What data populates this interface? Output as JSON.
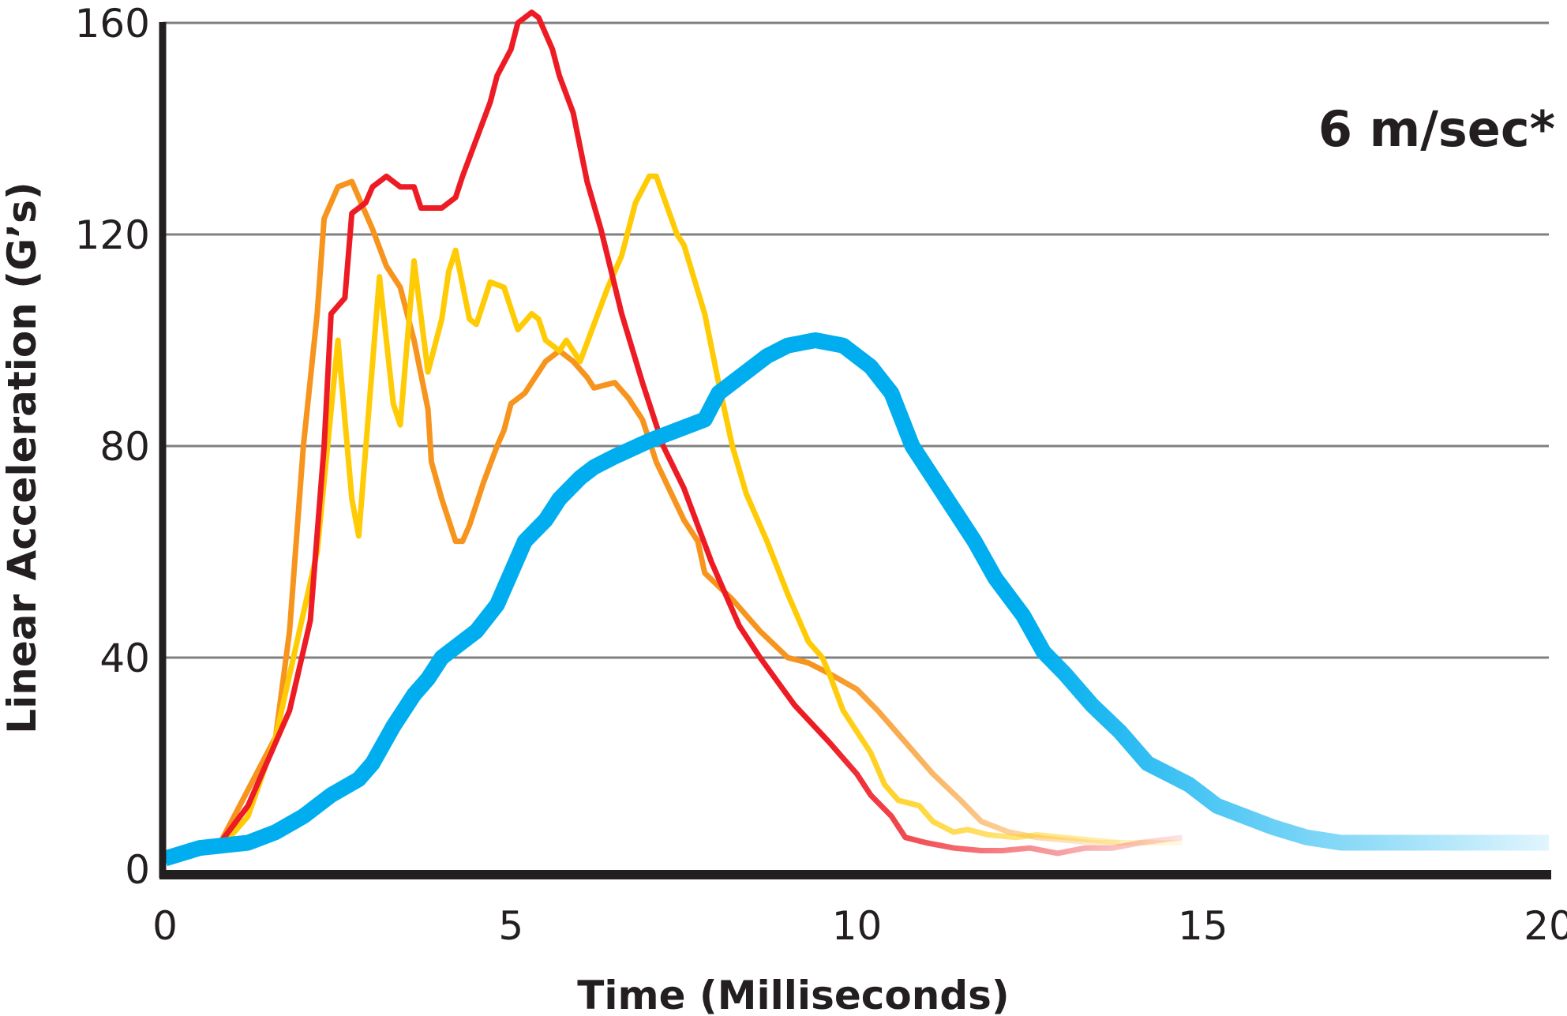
{
  "chart_data": {
    "type": "line",
    "title": "",
    "annotation": "6 m/sec*",
    "xlabel": "Time (Milliseconds)",
    "ylabel": "Linear Acceleration (G’s)",
    "xlim": [
      0,
      20
    ],
    "ylim": [
      0,
      160
    ],
    "xticks": [
      0,
      5,
      10,
      15,
      20
    ],
    "yticks": [
      0,
      40,
      80,
      120,
      160
    ],
    "grid": "horizontal",
    "series": [
      {
        "color": "#f7941d",
        "width": "thin",
        "fade_from": 9.5,
        "x": [
          0.8,
          1.6,
          1.8,
          2.0,
          2.2,
          2.3,
          2.5,
          2.7,
          2.8,
          3.0,
          3.2,
          3.4,
          3.6,
          3.8,
          3.85,
          4.0,
          4.1,
          4.2,
          4.3,
          4.4,
          4.6,
          4.8,
          4.9,
          5.0,
          5.2,
          5.3,
          5.5,
          5.7,
          5.9,
          6.1,
          6.2,
          6.5,
          6.7,
          6.9,
          7.1,
          7.5,
          7.7,
          7.8,
          8.2,
          8.6,
          9.0,
          9.3,
          9.6,
          10.0,
          10.3,
          10.7,
          11.1,
          11.5,
          11.8,
          12.2,
          12.6,
          13.0,
          13.4,
          13.8
        ],
        "y": [
          5,
          25,
          45,
          80,
          105,
          123,
          129,
          130,
          127,
          121,
          114,
          110,
          100,
          87,
          77,
          70,
          66,
          62,
          62,
          65,
          73,
          80,
          83,
          88,
          90,
          92,
          96,
          98,
          96,
          93,
          91,
          92,
          89,
          85,
          77,
          66,
          62,
          56,
          51,
          45,
          40,
          39,
          37,
          34,
          30,
          24,
          18,
          13,
          9,
          7,
          6,
          5.5,
          5,
          5
        ]
      },
      {
        "color": "#ffcb05",
        "width": "thin",
        "fade_from": 9.5,
        "x": [
          0.8,
          1.2,
          1.6,
          2.2,
          2.5,
          2.7,
          2.8,
          3.1,
          3.3,
          3.4,
          3.6,
          3.8,
          4.0,
          4.1,
          4.2,
          4.4,
          4.5,
          4.7,
          4.9,
          5.1,
          5.3,
          5.4,
          5.5,
          5.7,
          5.8,
          6.0,
          6.2,
          6.4,
          6.6,
          6.8,
          7.0,
          7.1,
          7.4,
          7.5,
          7.8,
          8.0,
          8.2,
          8.4,
          8.5,
          8.7,
          9.0,
          9.3,
          9.5,
          9.6,
          9.8,
          10.0,
          10.2,
          10.4,
          10.6,
          10.9,
          11.1,
          11.4,
          11.6,
          11.9,
          12.3,
          12.6,
          13.0,
          13.4,
          13.8,
          14.2,
          14.7
        ],
        "y": [
          4,
          10,
          25,
          60,
          100,
          70,
          63,
          112,
          88,
          84,
          115,
          94,
          104,
          113,
          117,
          104,
          103,
          111,
          110,
          102,
          105,
          104,
          100,
          98,
          100,
          96,
          103,
          110,
          116,
          126,
          131,
          131,
          120,
          118,
          105,
          92,
          80,
          71,
          68,
          62,
          52,
          43,
          40,
          37,
          30,
          26,
          22,
          16,
          13,
          12,
          9,
          7,
          7.5,
          6.5,
          6,
          6.5,
          6,
          5.5,
          5,
          5,
          5
        ]
      },
      {
        "color": "#ed1c24",
        "width": "thin",
        "fade_from": 9.5,
        "x": [
          0.8,
          1.2,
          1.8,
          2.1,
          2.3,
          2.4,
          2.6,
          2.7,
          2.9,
          3.0,
          3.2,
          3.4,
          3.6,
          3.7,
          4.0,
          4.2,
          4.3,
          4.7,
          4.8,
          5.0,
          5.1,
          5.3,
          5.4,
          5.6,
          5.7,
          5.9,
          6.1,
          6.3,
          6.6,
          6.9,
          7.2,
          7.5,
          7.9,
          8.1,
          8.3,
          8.6,
          9.1,
          9.6,
          10.0,
          10.2,
          10.5,
          10.7,
          11.0,
          11.4,
          11.8,
          12.1,
          12.5,
          12.9,
          13.3,
          13.7,
          14.1,
          14.7
        ],
        "y": [
          5,
          12,
          30,
          47,
          80,
          105,
          108,
          124,
          126,
          129,
          131,
          129,
          129,
          125,
          125,
          127,
          131,
          145,
          150,
          155,
          160,
          162,
          161,
          155,
          150,
          143,
          130,
          121,
          105,
          92,
          80,
          72,
          58,
          52,
          46,
          40,
          31,
          24,
          18,
          14,
          10,
          6,
          5,
          4,
          3.5,
          3.5,
          4,
          3,
          4,
          4,
          5,
          6
        ]
      },
      {
        "color": "#00aeef",
        "width": "thick",
        "fade_from": 12.5,
        "x": [
          0,
          0.5,
          1.2,
          1.6,
          2.0,
          2.4,
          2.8,
          3.0,
          3.3,
          3.6,
          3.8,
          4.0,
          4.2,
          4.5,
          4.8,
          5.0,
          5.2,
          5.5,
          5.7,
          6.0,
          6.2,
          6.5,
          7.0,
          7.4,
          7.8,
          8.0,
          8.4,
          8.7,
          9.0,
          9.4,
          9.8,
          10.2,
          10.5,
          10.8,
          11.1,
          11.4,
          11.7,
          12.0,
          12.4,
          12.7,
          13.0,
          13.4,
          13.8,
          14.2,
          14.5,
          14.8,
          15.2,
          15.6,
          16.0,
          16.5,
          17.0,
          18.0,
          20.0
        ],
        "y": [
          2,
          4,
          5,
          7,
          10,
          14,
          17,
          20,
          27,
          33,
          36,
          40,
          42,
          45,
          50,
          56,
          62,
          66,
          70,
          74,
          76,
          78,
          81,
          83,
          85,
          90,
          94,
          97,
          99,
          100,
          99,
          95,
          90,
          80,
          74,
          68,
          62,
          55,
          48,
          41,
          37,
          31,
          26,
          20,
          18,
          16,
          12,
          10,
          8,
          6,
          5,
          5,
          5
        ]
      }
    ]
  }
}
